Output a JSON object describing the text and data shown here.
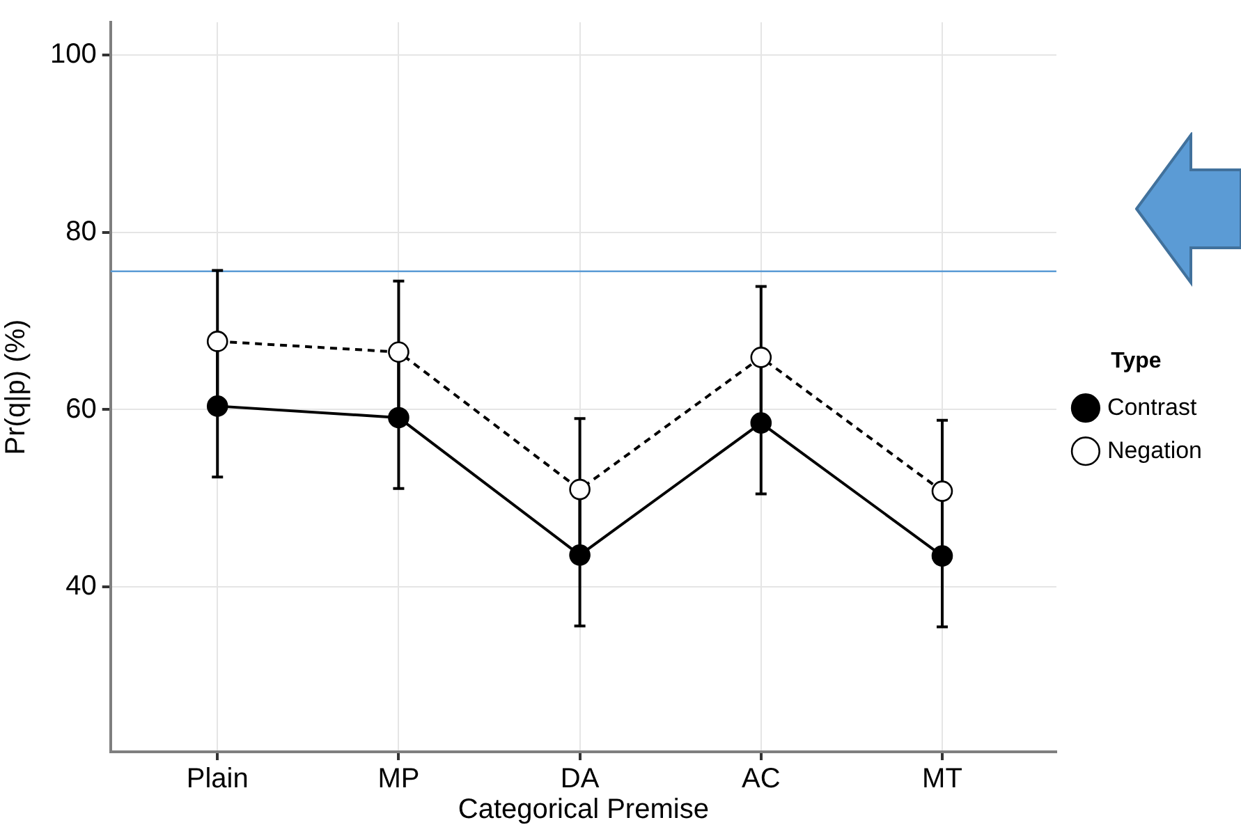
{
  "chart_data": {
    "type": "line",
    "xlabel": "Categorical Premise",
    "ylabel": "Pr(q|p) (%)",
    "legend_title": "Type",
    "categories": [
      "Plain",
      "MP",
      "DA",
      "AC",
      "MT"
    ],
    "series": [
      {
        "name": "Contrast",
        "color": "#000000",
        "line_style": "solid",
        "values": [
          60.4,
          59.1,
          43.6,
          58.5,
          43.5
        ],
        "errors": [
          8,
          8,
          8,
          8,
          8
        ]
      },
      {
        "name": "Negation",
        "color": "#000000",
        "line_style": "dashed",
        "values": [
          67.7,
          66.5,
          51.0,
          65.9,
          50.8
        ],
        "errors": [
          8,
          8,
          8,
          8,
          8
        ]
      }
    ],
    "ylim": [
      21.4,
      103.7
    ],
    "yticks": [
      40,
      60,
      80,
      100
    ],
    "grid": true,
    "legend": "right",
    "marker": "circle",
    "ref_lines": [
      {
        "axis": "y",
        "value": 75.6,
        "color": "#5b9bd5"
      }
    ]
  }
}
